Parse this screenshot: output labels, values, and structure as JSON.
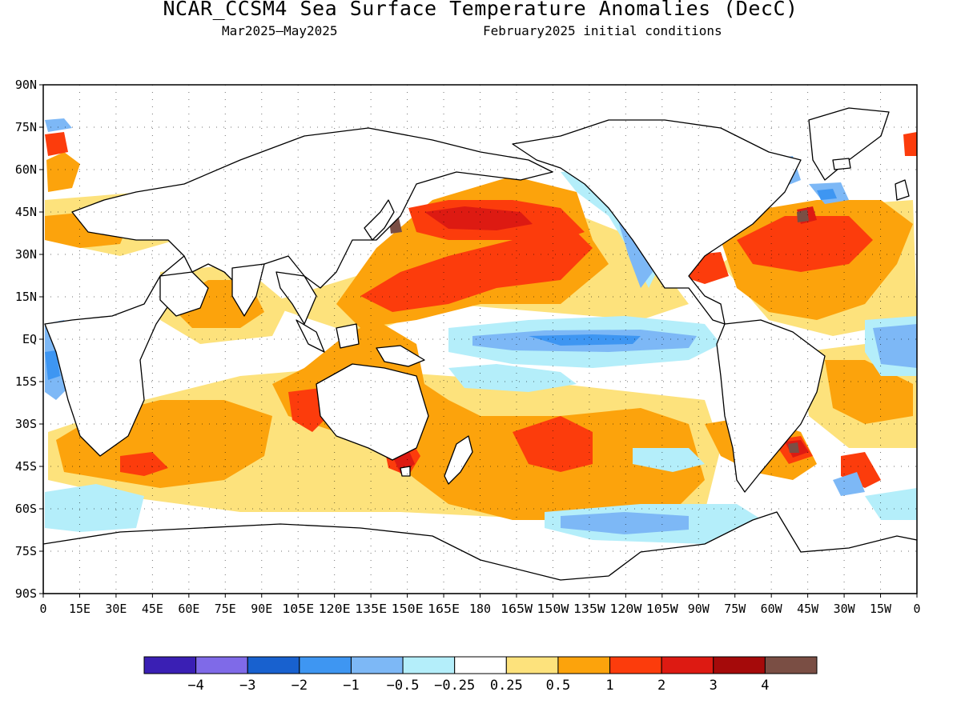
{
  "header": {
    "title": "NCAR_CCSM4 Sea Surface Temperature Anomalies (DecC)",
    "period": "Mar2025–May2025",
    "init": "February2025 initial conditions"
  },
  "map": {
    "projection": "equirectangular",
    "lon_range": [
      0,
      360
    ],
    "lat_range": [
      -90,
      90
    ],
    "grid": "dotted",
    "lat_labels": [
      "90N",
      "75N",
      "60N",
      "45N",
      "30N",
      "15N",
      "EQ",
      "15S",
      "30S",
      "45S",
      "60S",
      "75S",
      "90S"
    ],
    "lon_labels": [
      "0",
      "15E",
      "30E",
      "45E",
      "60E",
      "75E",
      "90E",
      "105E",
      "120E",
      "135E",
      "150E",
      "165E",
      "180",
      "165W",
      "150W",
      "135W",
      "120W",
      "105W",
      "90W",
      "75W",
      "60W",
      "45W",
      "30W",
      "15W",
      "0"
    ],
    "lon_labels_visible": [
      "0",
      "15E",
      "30E",
      "45E",
      "60E",
      "75E",
      "90E",
      "105E120E135E150E165E",
      "180",
      "165W150W135W120W105W90W",
      "75W",
      "60W",
      "45W",
      "30W",
      "15W",
      "0"
    ]
  },
  "colorbar": {
    "colors": [
      "#3a1fb4",
      "#7f6ae8",
      "#1861cf",
      "#3e96f2",
      "#7db8f6",
      "#b4eefa",
      "#ffffff",
      "#fde27c",
      "#fca30c",
      "#fc3c0c",
      "#dd1a12",
      "#a50a0a",
      "#7a4e44"
    ],
    "labels": [
      "−4",
      "−3",
      "−2",
      "−1",
      "−0.5",
      "−0.25",
      "0.25",
      "0.5",
      "1",
      "2",
      "3",
      "4"
    ]
  },
  "legend_colors": {
    "strong_warm": "#dd1a12",
    "warm": "#fc3c0c",
    "mild_warm": "#fca30c",
    "slight_warm": "#fde27c",
    "slight_cool": "#b4eefa",
    "cool": "#7db8f6",
    "cold": "#3e96f2",
    "very_warm": "#a50a0a",
    "extreme_warm": "#7a4e44",
    "extreme_cold": "#3a1fb4"
  }
}
